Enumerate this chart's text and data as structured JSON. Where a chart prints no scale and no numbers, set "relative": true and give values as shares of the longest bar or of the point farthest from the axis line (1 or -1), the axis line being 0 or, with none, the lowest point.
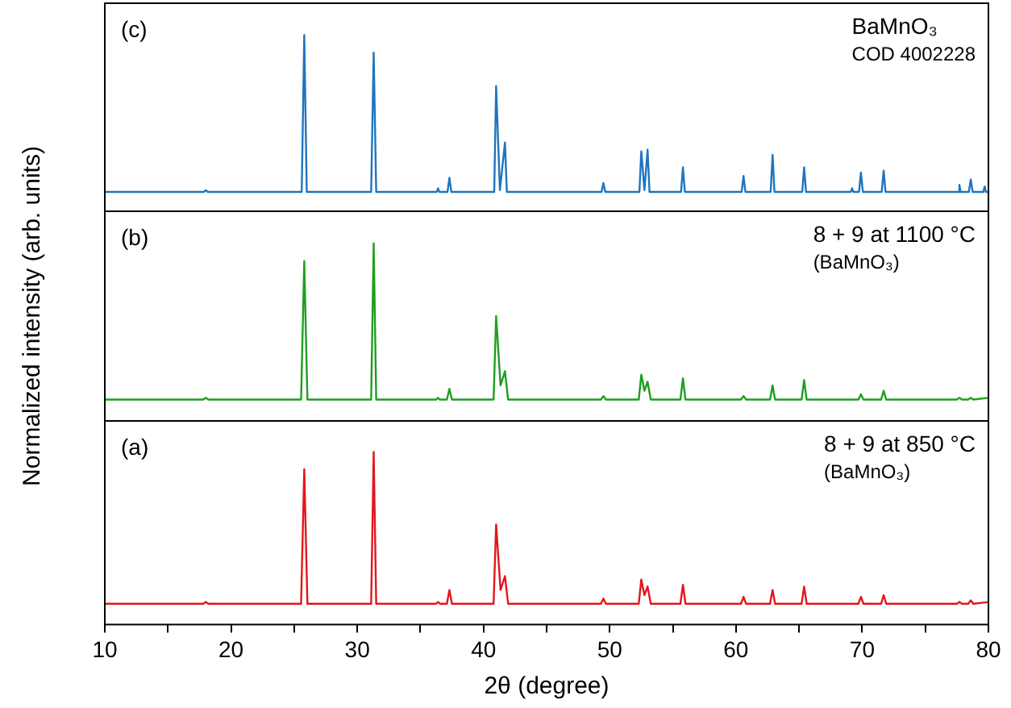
{
  "chart_data": [
    {
      "type": "line",
      "relative": true,
      "xlim": [
        10,
        80
      ],
      "tick_labels": false,
      "annotations": [
        "(c)",
        "BaMnO₃",
        "COD 4002228"
      ],
      "series": [
        {
          "color": "#1f74c0",
          "x": [
            10,
            17.85,
            18,
            18.15,
            25.6,
            25.8,
            26.0,
            31.1,
            31.3,
            31.5,
            36.3,
            36.4,
            36.5,
            37.15,
            37.3,
            37.45,
            40.85,
            41.0,
            41.3,
            41.7,
            41.85,
            49.35,
            49.5,
            49.65,
            52.35,
            52.5,
            52.75,
            53.0,
            53.15,
            55.65,
            55.8,
            55.95,
            60.45,
            60.6,
            60.75,
            62.75,
            62.9,
            63.05,
            65.25,
            65.4,
            65.55,
            69.1,
            69.2,
            69.3,
            69.75,
            69.9,
            70.05,
            71.55,
            71.7,
            71.85,
            77.6,
            77.7,
            77.8,
            78.45,
            78.6,
            78.75,
            79.6,
            79.7,
            79.8,
            80
          ],
          "values": [
            0.11,
            0.11,
            0.12,
            0.11,
            0.11,
            1.0,
            0.11,
            0.11,
            0.9,
            0.11,
            0.11,
            0.13,
            0.11,
            0.11,
            0.19,
            0.11,
            0.11,
            0.71,
            0.12,
            0.39,
            0.11,
            0.11,
            0.16,
            0.11,
            0.11,
            0.34,
            0.12,
            0.35,
            0.11,
            0.11,
            0.25,
            0.11,
            0.11,
            0.2,
            0.11,
            0.11,
            0.32,
            0.11,
            0.11,
            0.25,
            0.11,
            0.11,
            0.13,
            0.11,
            0.11,
            0.22,
            0.11,
            0.11,
            0.23,
            0.11,
            0.11,
            0.15,
            0.11,
            0.11,
            0.18,
            0.11,
            0.11,
            0.14,
            0.11,
            0.11
          ]
        }
      ]
    },
    {
      "type": "line",
      "relative": true,
      "xlim": [
        10,
        80
      ],
      "tick_labels": false,
      "ylabel": "Normalized intensity (arb. units)",
      "annotations": [
        "(b)",
        "8 + 9 at 1100 °C",
        "(BaMnO₃)"
      ],
      "series": [
        {
          "color": "#1f9e1f",
          "x": [
            10,
            17.8,
            18,
            18.2,
            25.55,
            25.8,
            26.05,
            31.1,
            31.3,
            31.5,
            36.25,
            36.4,
            36.55,
            37.1,
            37.3,
            37.5,
            40.8,
            41.0,
            41.35,
            41.7,
            41.95,
            49.3,
            49.5,
            49.7,
            52.3,
            52.5,
            52.75,
            53.0,
            53.25,
            55.6,
            55.8,
            56.0,
            60.4,
            60.6,
            60.8,
            62.7,
            62.9,
            63.1,
            65.2,
            65.4,
            65.6,
            69.7,
            69.9,
            70.1,
            71.5,
            71.7,
            71.9,
            77.5,
            77.7,
            77.9,
            78.4,
            78.6,
            78.8,
            80
          ],
          "values": [
            0.12,
            0.12,
            0.13,
            0.12,
            0.12,
            0.9,
            0.12,
            0.12,
            1.0,
            0.12,
            0.12,
            0.13,
            0.12,
            0.12,
            0.18,
            0.12,
            0.12,
            0.59,
            0.2,
            0.28,
            0.12,
            0.12,
            0.14,
            0.12,
            0.12,
            0.26,
            0.17,
            0.22,
            0.12,
            0.12,
            0.24,
            0.12,
            0.12,
            0.14,
            0.12,
            0.12,
            0.2,
            0.12,
            0.12,
            0.23,
            0.12,
            0.12,
            0.15,
            0.12,
            0.12,
            0.17,
            0.12,
            0.12,
            0.13,
            0.12,
            0.12,
            0.13,
            0.12,
            0.13
          ]
        }
      ]
    },
    {
      "type": "line",
      "relative": true,
      "xlim": [
        10,
        80
      ],
      "tick_labels": "x",
      "xlabel": "2θ (degree)",
      "xticks": [
        10,
        {
          "value": 15,
          "label": null
        },
        20,
        {
          "value": 25,
          "label": null
        },
        30,
        {
          "value": 35,
          "label": null
        },
        40,
        {
          "value": 45,
          "label": null
        },
        50,
        {
          "value": 55,
          "label": null
        },
        60,
        {
          "value": 65,
          "label": null
        },
        70,
        {
          "value": 75,
          "label": null
        },
        80
      ],
      "annotations": [
        "(a)",
        "8 + 9 at 850 °C",
        "(BaMnO₃)"
      ],
      "series": [
        {
          "color": "#e3161c",
          "x": [
            10,
            17.8,
            18,
            18.2,
            25.55,
            25.8,
            26.05,
            31.1,
            31.3,
            31.5,
            36.25,
            36.4,
            36.55,
            37.1,
            37.3,
            37.5,
            40.8,
            41.0,
            41.35,
            41.7,
            41.95,
            49.3,
            49.5,
            49.7,
            52.3,
            52.5,
            52.75,
            53.0,
            53.25,
            55.6,
            55.8,
            56.0,
            60.4,
            60.6,
            60.8,
            62.7,
            62.9,
            63.1,
            65.2,
            65.4,
            65.6,
            69.7,
            69.9,
            70.1,
            71.5,
            71.7,
            71.9,
            77.5,
            77.7,
            77.9,
            78.4,
            78.6,
            78.8,
            80
          ],
          "values": [
            0.12,
            0.12,
            0.13,
            0.12,
            0.12,
            0.9,
            0.12,
            0.12,
            1.0,
            0.12,
            0.12,
            0.13,
            0.12,
            0.12,
            0.2,
            0.12,
            0.12,
            0.58,
            0.2,
            0.28,
            0.12,
            0.12,
            0.15,
            0.12,
            0.12,
            0.26,
            0.17,
            0.22,
            0.12,
            0.12,
            0.23,
            0.12,
            0.12,
            0.16,
            0.12,
            0.12,
            0.2,
            0.12,
            0.12,
            0.22,
            0.12,
            0.12,
            0.16,
            0.12,
            0.12,
            0.17,
            0.12,
            0.12,
            0.13,
            0.12,
            0.12,
            0.14,
            0.12,
            0.13
          ]
        }
      ]
    }
  ]
}
